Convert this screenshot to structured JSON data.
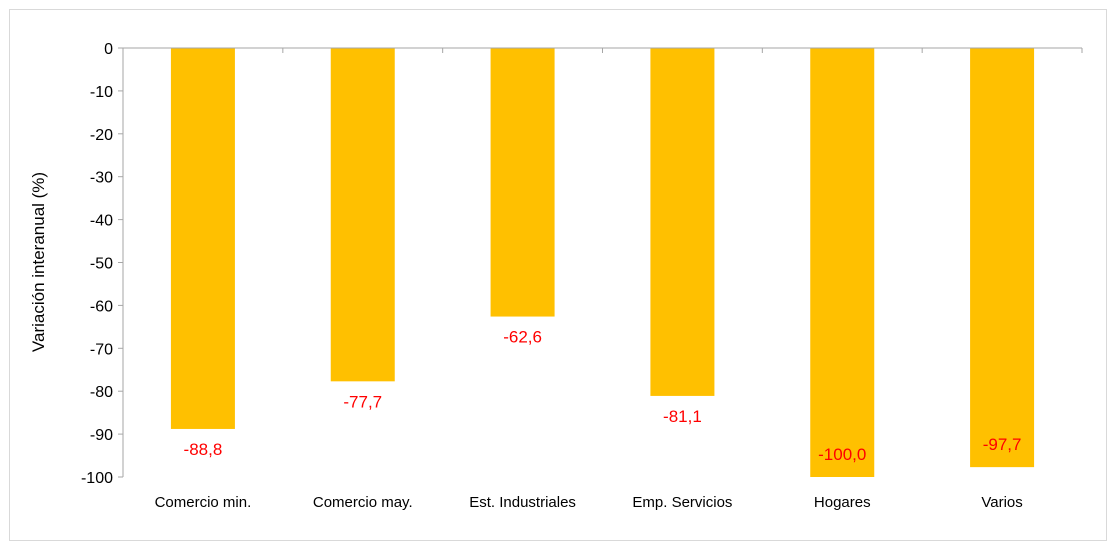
{
  "chart_data": {
    "type": "bar",
    "categories": [
      "Comercio min.",
      "Comercio may.",
      "Est. Industriales",
      "Emp. Servicios",
      "Hogares",
      "Varios"
    ],
    "values": [
      -88.8,
      -77.7,
      -62.6,
      -81.1,
      -100.0,
      -97.7
    ],
    "data_labels": [
      "-88,8",
      "-77,7",
      "-62,6",
      "-81,1",
      "-100,0",
      "-97,7"
    ],
    "ylabel": "Variación interanual (%)",
    "xlabel": "",
    "ylim": [
      -100,
      0
    ],
    "yticks": [
      0,
      -10,
      -20,
      -30,
      -40,
      -50,
      -60,
      -70,
      -80,
      -90,
      -100
    ],
    "grid": false,
    "legend": "none",
    "colors": {
      "bar": "#FFC000",
      "data_label": "#FF0000",
      "axis": "#A6A6A6"
    }
  }
}
